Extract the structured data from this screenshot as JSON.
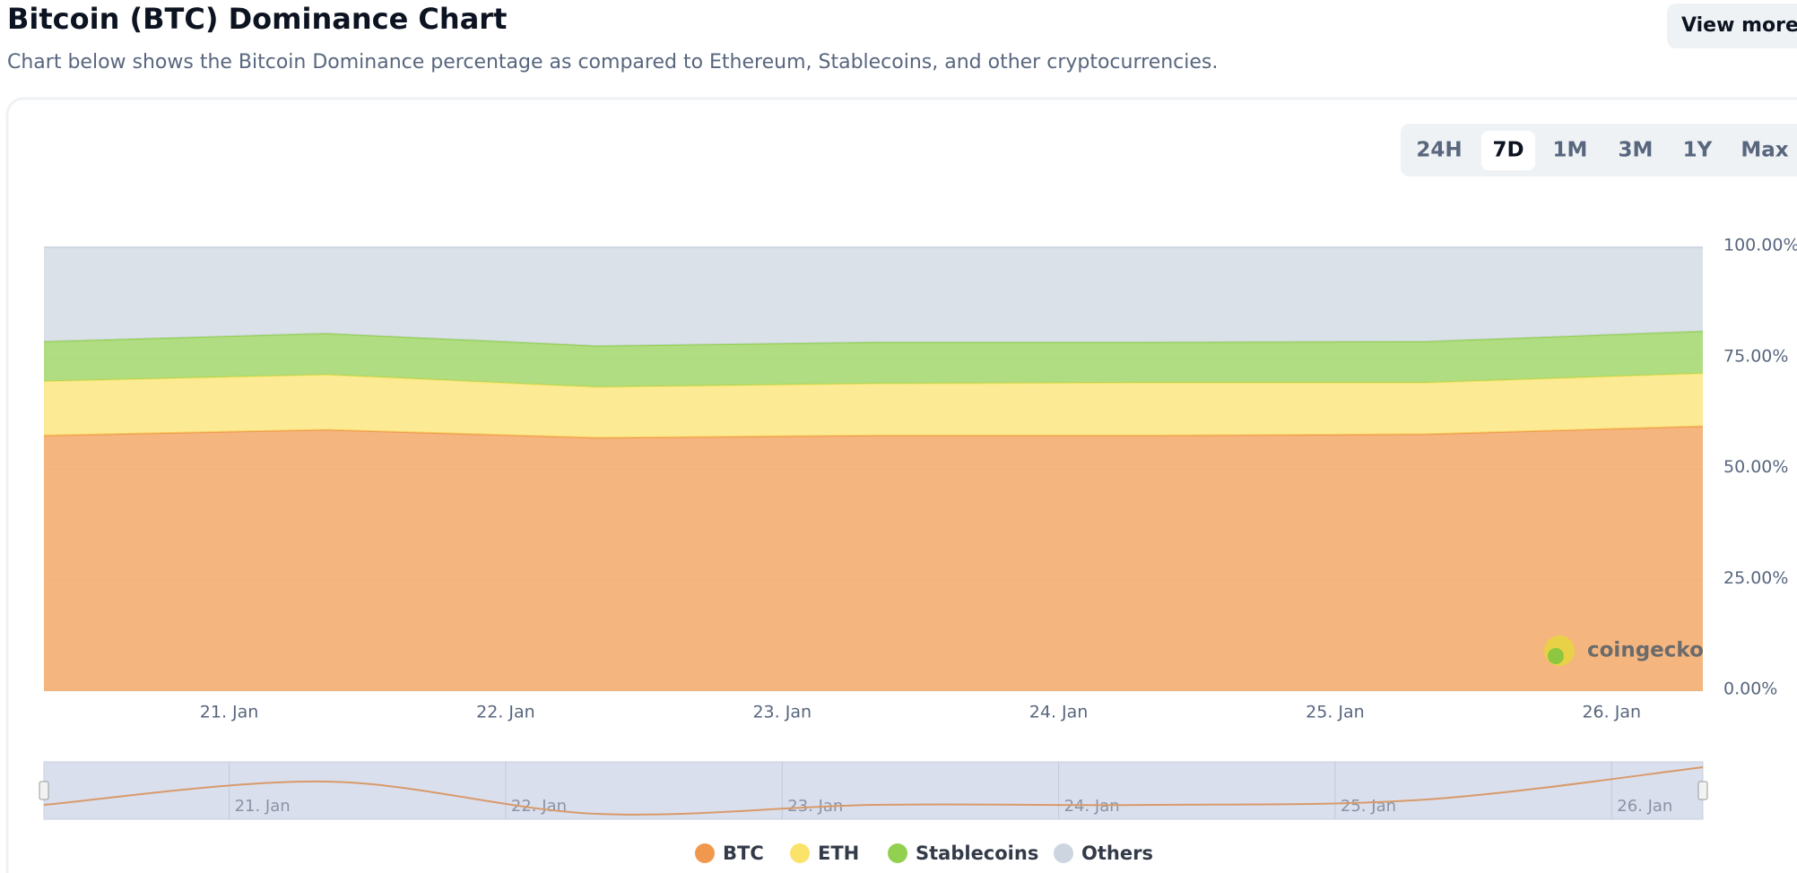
{
  "header": {
    "title": "Bitcoin (BTC) Dominance Chart",
    "subtitle": "Chart below shows the Bitcoin Dominance percentage as compared to Ethereum, Stablecoins, and other cryptocurrencies.",
    "view_more": "View more"
  },
  "range_buttons": {
    "options": [
      "24H",
      "7D",
      "1M",
      "3M",
      "1Y",
      "Max"
    ],
    "selected": "7D"
  },
  "chart_data": {
    "type": "stacked_area",
    "x": [
      20.33,
      21.35,
      22.33,
      23.33,
      24.33,
      25.33,
      26.33
    ],
    "xlim": [
      20.33,
      26.33
    ],
    "xticks": [
      {
        "value": 21,
        "label": "21. Jan"
      },
      {
        "value": 22,
        "label": "22. Jan"
      },
      {
        "value": 23,
        "label": "23. Jan"
      },
      {
        "value": 24,
        "label": "24. Jan"
      },
      {
        "value": 25,
        "label": "25. Jan"
      },
      {
        "value": 26,
        "label": "26. Jan"
      }
    ],
    "ylim": [
      0,
      100
    ],
    "yticks": [
      {
        "value": 0,
        "label": "0.00%"
      },
      {
        "value": 25,
        "label": "25.00%"
      },
      {
        "value": 50,
        "label": "50.00%"
      },
      {
        "value": 75,
        "label": "75.00%"
      },
      {
        "value": 100,
        "label": "100.00%"
      }
    ],
    "series": [
      {
        "name": "BTC",
        "color": "#f0994e",
        "values": [
          57.6,
          58.9,
          57.1,
          57.6,
          57.6,
          57.9,
          59.7
        ]
      },
      {
        "name": "ETH",
        "color": "#fbe36b",
        "values": [
          12.2,
          12.4,
          11.4,
          11.7,
          11.9,
          11.6,
          11.9
        ]
      },
      {
        "name": "Stablecoins",
        "color": "#92d050",
        "values": [
          9.0,
          9.3,
          9.3,
          9.3,
          9.1,
          9.3,
          9.5
        ]
      },
      {
        "name": "Others",
        "color": "#cdd5e0",
        "values": [
          21.2,
          19.4,
          22.2,
          21.4,
          21.4,
          21.2,
          18.9
        ]
      }
    ],
    "watermark": "coingecko",
    "legend": "bottom"
  }
}
